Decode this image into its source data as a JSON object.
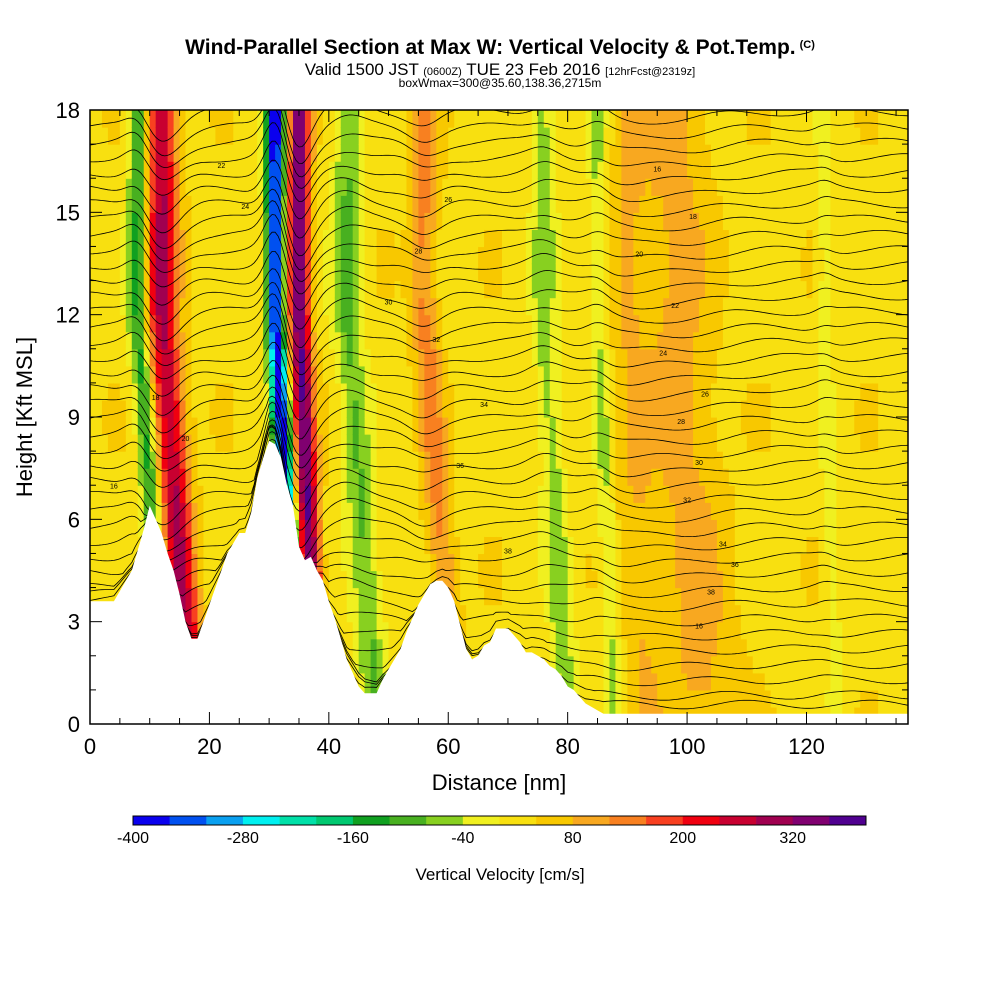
{
  "chart_data": {
    "type": "heatmap",
    "title": "Wind-Parallel Section at Max W: Vertical Velocity & Pot.Temp.",
    "title_mark": "(C)",
    "subtitle_main": "Valid 1500 JST",
    "subtitle_zulu": "(0600Z)",
    "subtitle_date": "TUE 23 Feb 2016",
    "subtitle_fcst": "[12hrFcst@2319z]",
    "subtitle2": "boxWmax=300@35.60,138.36,2715m",
    "xlabel": "Distance [nm]",
    "ylabel": "Height [Kft MSL]",
    "xlim": [
      0,
      137
    ],
    "ylim": [
      0,
      18
    ],
    "x_ticks": [
      "0",
      "20",
      "40",
      "60",
      "80",
      "100",
      "120"
    ],
    "y_ticks": [
      "0",
      "3",
      "6",
      "9",
      "12",
      "15",
      "18"
    ],
    "x_tick_values": [
      0,
      20,
      40,
      60,
      80,
      100,
      120
    ],
    "y_tick_values": [
      0,
      3,
      6,
      9,
      12,
      15,
      18
    ],
    "colorbar": {
      "title": "Vertical Velocity [cm/s]",
      "tick_labels": [
        "-400",
        "-280",
        "-160",
        "-40",
        "80",
        "200",
        "320"
      ],
      "tick_values": [
        -400,
        -280,
        -160,
        -40,
        80,
        200,
        320
      ],
      "levels": [
        -400,
        -360,
        -320,
        -280,
        -240,
        -200,
        -160,
        -120,
        -80,
        -40,
        0,
        40,
        80,
        120,
        160,
        200,
        240,
        280,
        320,
        360
      ],
      "colors": [
        "#0a00ee",
        "#0050f0",
        "#0aa0f0",
        "#00f0f0",
        "#00e0a8",
        "#00c870",
        "#10a020",
        "#48b020",
        "#88d020",
        "#f0f020",
        "#f8e010",
        "#f8c800",
        "#f8a820",
        "#f88020",
        "#f84020",
        "#f00010",
        "#c80030",
        "#a00050",
        "#800070",
        "#500090"
      ]
    },
    "terrain_kft": [
      [
        0,
        3.6
      ],
      [
        4,
        3.6
      ],
      [
        5,
        3.9
      ],
      [
        7,
        4.5
      ],
      [
        8,
        5.1
      ],
      [
        9,
        5.7
      ],
      [
        10,
        6.4
      ],
      [
        11,
        6.0
      ],
      [
        12,
        5.6
      ],
      [
        13,
        5.0
      ],
      [
        14,
        4.5
      ],
      [
        15,
        3.8
      ],
      [
        16,
        3.0
      ],
      [
        17,
        2.5
      ],
      [
        18,
        2.5
      ],
      [
        19,
        3.0
      ],
      [
        20,
        3.5
      ],
      [
        21,
        4.0
      ],
      [
        22,
        4.5
      ],
      [
        23,
        5.0
      ],
      [
        24,
        5.3
      ],
      [
        25,
        5.6
      ],
      [
        26,
        5.6
      ],
      [
        27,
        6.2
      ],
      [
        28,
        7.2
      ],
      [
        29,
        7.8
      ],
      [
        30,
        8.3
      ],
      [
        31,
        8.2
      ],
      [
        32,
        7.8
      ],
      [
        33,
        7.0
      ],
      [
        34,
        6.4
      ],
      [
        35,
        5.2
      ],
      [
        36,
        4.8
      ],
      [
        37,
        4.9
      ],
      [
        38,
        4.5
      ],
      [
        39,
        4.2
      ],
      [
        40,
        3.6
      ],
      [
        41,
        3.1
      ],
      [
        42,
        2.5
      ],
      [
        43,
        1.9
      ],
      [
        44,
        1.5
      ],
      [
        45,
        1.1
      ],
      [
        46,
        0.9
      ],
      [
        48,
        0.9
      ],
      [
        49,
        1.3
      ],
      [
        50,
        1.6
      ],
      [
        51,
        1.9
      ],
      [
        52,
        2.2
      ],
      [
        53,
        2.7
      ],
      [
        54,
        3.1
      ],
      [
        55,
        3.5
      ],
      [
        56,
        3.8
      ],
      [
        57,
        4.1
      ],
      [
        58,
        4.2
      ],
      [
        59,
        4.2
      ],
      [
        60,
        4.0
      ],
      [
        61,
        3.6
      ],
      [
        62,
        2.9
      ],
      [
        63,
        2.2
      ],
      [
        64,
        1.9
      ],
      [
        65,
        2.0
      ],
      [
        66,
        2.3
      ],
      [
        67,
        2.4
      ],
      [
        68,
        2.8
      ],
      [
        69,
        2.8
      ],
      [
        70,
        2.8
      ],
      [
        71,
        2.6
      ],
      [
        72,
        2.4
      ],
      [
        73,
        2.1
      ],
      [
        74,
        2.1
      ],
      [
        75,
        2.0
      ],
      [
        76,
        1.9
      ],
      [
        77,
        1.7
      ],
      [
        78,
        1.6
      ],
      [
        79,
        1.4
      ],
      [
        80,
        1.1
      ],
      [
        81,
        1.0
      ],
      [
        82,
        0.8
      ],
      [
        83,
        0.6
      ],
      [
        84,
        0.5
      ],
      [
        85,
        0.4
      ],
      [
        86,
        0.3
      ],
      [
        137,
        0.3
      ]
    ],
    "updrafts": [
      {
        "x0": 17,
        "x1": 12,
        "w": 260,
        "width": 2.6
      },
      {
        "x0": 38,
        "x1": 35,
        "w": 340,
        "width": 1.8
      },
      {
        "x0": 61,
        "x1": 56,
        "w": 110,
        "width": 2.2
      },
      {
        "x0": 103,
        "x1": 98,
        "w": 70,
        "width": 6.0
      },
      {
        "x0": 93,
        "x1": 90,
        "w": 50,
        "width": 3.0
      }
    ],
    "downdrafts": [
      {
        "x0": 13,
        "x1": 8,
        "w": -170,
        "width": 1.6
      },
      {
        "x0": 35,
        "x1": 31,
        "w": -420,
        "width": 1.5
      },
      {
        "x0": 48,
        "x1": 43,
        "w": -110,
        "width": 2.4
      },
      {
        "x0": 80,
        "x1": 76,
        "w": -90,
        "width": 2.0
      },
      {
        "x0": 88,
        "x1": 85,
        "w": -70,
        "width": 1.4
      },
      {
        "x0": 125,
        "x1": 123,
        "w": -50,
        "width": 1.2
      }
    ],
    "theta_contour_labels": [
      "16",
      "18",
      "20",
      "22",
      "24",
      "26",
      "28",
      "30",
      "32",
      "34",
      "36",
      "38"
    ]
  }
}
